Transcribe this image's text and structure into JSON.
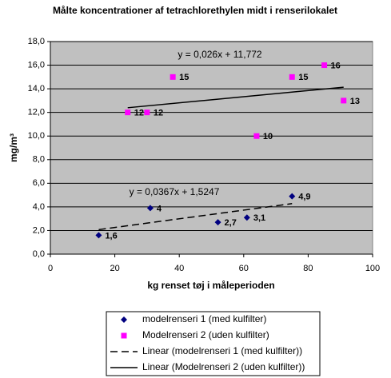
{
  "chart_data": {
    "type": "scatter",
    "title": "Målte koncentrationer af tetrachlorethylen midt i renserilokalet",
    "xlabel": "kg renset tøj i måleperioden",
    "ylabel": "mg/m³",
    "xlim": [
      0,
      100
    ],
    "xticks": [
      0,
      20,
      40,
      60,
      80,
      100
    ],
    "ylim": [
      0,
      18
    ],
    "yticks": [
      {
        "value": 0,
        "label": "0,0"
      },
      {
        "value": 2,
        "label": "2,0"
      },
      {
        "value": 4,
        "label": "4,0"
      },
      {
        "value": 6,
        "label": "6,0"
      },
      {
        "value": 8,
        "label": "8,0"
      },
      {
        "value": 10,
        "label": "10,0"
      },
      {
        "value": 12,
        "label": "12,0"
      },
      {
        "value": 14,
        "label": "14,0"
      },
      {
        "value": 16,
        "label": "16,0"
      },
      {
        "value": 18,
        "label": "18,0"
      }
    ],
    "grid": true,
    "series": [
      {
        "name": "modelrenseri 1 (med kulfilter)",
        "color": "#000080",
        "marker": "diamond",
        "x": [
          15,
          31,
          52,
          61,
          75
        ],
        "values": [
          1.6,
          3.9,
          2.7,
          3.1,
          4.9
        ],
        "value_labels": [
          "1,6",
          "4",
          "2,7",
          "3,1",
          "4,9"
        ]
      },
      {
        "name": "Modelrenseri 2 (uden kulfilter)",
        "color": "#ff00ff",
        "marker": "square",
        "x": [
          24,
          30,
          38,
          64,
          75,
          85,
          91
        ],
        "values": [
          12,
          12,
          15,
          10,
          15,
          16,
          13
        ]
      }
    ],
    "trendlines": [
      {
        "name": "Linear (modelrenseri 1 (med kulfilter))",
        "series": 0,
        "style": "dashed",
        "equation": "y = 0,0367x + 1,5247",
        "slope": 0.0367,
        "intercept": 1.5247
      },
      {
        "name": "Linear (Modelrenseri 2 (uden kulfilter))",
        "series": 1,
        "style": "solid",
        "equation": "y = 0,026x + 11,772",
        "slope": 0.026,
        "intercept": 11.772
      }
    ]
  }
}
